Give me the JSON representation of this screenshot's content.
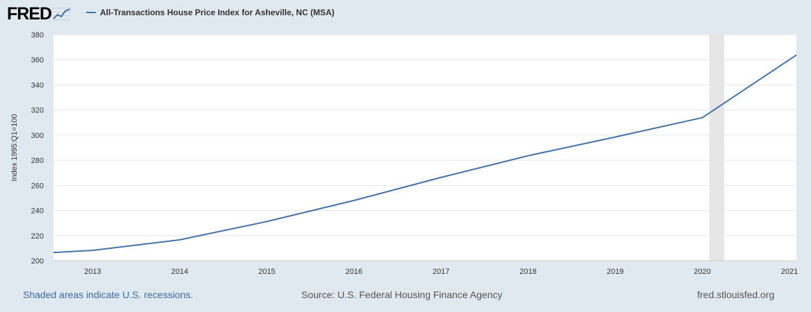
{
  "header": {
    "logo_text": "FRED",
    "series_title": "All-Transactions House Price Index for Asheville, NC (MSA)"
  },
  "footer": {
    "recession_note": "Shaded areas indicate U.S. recessions.",
    "source": "Source: U.S. Federal Housing Finance Agency",
    "site": "fred.stlouisfed.org"
  },
  "colors": {
    "line": "#4572a7",
    "recession_shade": "#e6e6e6",
    "background": "#e1e9f0"
  },
  "chart_data": {
    "type": "line",
    "title": "All-Transactions House Price Index for Asheville, NC (MSA)",
    "ylabel": "Index 1995:Q1=100",
    "xlabel": "",
    "ylim": [
      200,
      380
    ],
    "xlim": [
      2012.55,
      2021.08
    ],
    "yticks": [
      200,
      220,
      240,
      260,
      280,
      300,
      320,
      340,
      360,
      380
    ],
    "xticks": [
      "2013",
      "2014",
      "2015",
      "2016",
      "2017",
      "2018",
      "2019",
      "2020",
      "2021"
    ],
    "grid": true,
    "recessions": [
      {
        "start": 2020.08,
        "end": 2020.25
      }
    ],
    "series": [
      {
        "name": "All-Transactions House Price Index for Asheville, NC (MSA)",
        "x": [
          2012.55,
          2013.0,
          2014.0,
          2015.0,
          2016.0,
          2017.0,
          2018.0,
          2019.0,
          2020.0,
          2021.08
        ],
        "y": [
          206.5,
          208.2,
          216.6,
          231.2,
          248.0,
          266.3,
          283.6,
          298.5,
          313.9,
          363.8
        ]
      }
    ]
  }
}
